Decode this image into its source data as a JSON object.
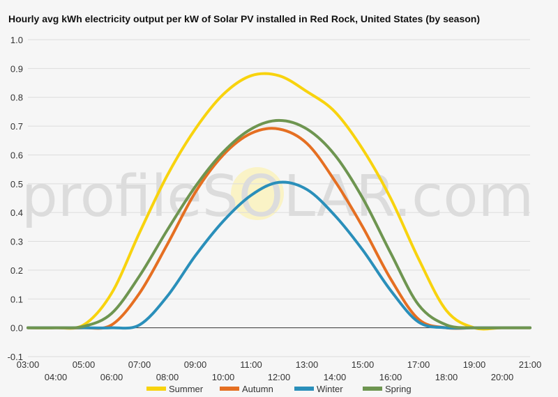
{
  "chart_data": {
    "type": "line",
    "title": "Hourly avg kWh electricity output per kW of Solar PV installed in Red Rock, United States (by season)",
    "xlabel": "",
    "ylabel": "",
    "x_ticks": [
      "03:00",
      "04:00",
      "05:00",
      "06:00",
      "07:00",
      "08:00",
      "09:00",
      "10:00",
      "11:00",
      "12:00",
      "13:00",
      "14:00",
      "15:00",
      "16:00",
      "17:00",
      "18:00",
      "19:00",
      "20:00",
      "21:00"
    ],
    "y_ticks": [
      "-0.1",
      "0.0",
      "0.1",
      "0.2",
      "0.3",
      "0.4",
      "0.5",
      "0.6",
      "0.7",
      "0.8",
      "0.9",
      "1.0"
    ],
    "ylim": [
      -0.1,
      1.0
    ],
    "xlim": [
      3,
      21
    ],
    "grid": true,
    "legend_position": "bottom",
    "watermark": "profileSOLAR.com",
    "series": [
      {
        "name": "Summer",
        "color": "#f8d30e",
        "x": [
          3,
          4,
          5,
          6,
          7,
          8,
          9,
          10,
          11,
          12,
          13,
          14,
          15,
          16,
          17,
          18,
          19,
          20,
          21
        ],
        "values": [
          0,
          0,
          0.01,
          0.12,
          0.33,
          0.53,
          0.69,
          0.81,
          0.875,
          0.875,
          0.82,
          0.75,
          0.62,
          0.45,
          0.24,
          0.06,
          0,
          0,
          0
        ]
      },
      {
        "name": "Autumn",
        "color": "#e56f22",
        "x": [
          3,
          4,
          5,
          6,
          7,
          8,
          9,
          10,
          11,
          12,
          13,
          14,
          15,
          16,
          17,
          18,
          19,
          20,
          21
        ],
        "values": [
          0,
          0,
          0,
          0.01,
          0.12,
          0.29,
          0.47,
          0.6,
          0.675,
          0.69,
          0.64,
          0.51,
          0.35,
          0.17,
          0.03,
          0,
          0,
          0,
          0
        ]
      },
      {
        "name": "Winter",
        "color": "#2a8fba",
        "x": [
          3,
          4,
          5,
          6,
          7,
          8,
          9,
          10,
          11,
          12,
          13,
          14,
          15,
          16,
          17,
          18,
          19,
          20,
          21
        ],
        "values": [
          0,
          0,
          0,
          0,
          0.01,
          0.11,
          0.25,
          0.37,
          0.46,
          0.505,
          0.48,
          0.39,
          0.27,
          0.13,
          0.02,
          0,
          0,
          0,
          0
        ]
      },
      {
        "name": "Spring",
        "color": "#6e9550",
        "x": [
          3,
          4,
          5,
          6,
          7,
          8,
          9,
          10,
          11,
          12,
          13,
          14,
          15,
          16,
          17,
          18,
          19,
          20,
          21
        ],
        "values": [
          0,
          0,
          0.005,
          0.05,
          0.18,
          0.34,
          0.49,
          0.61,
          0.69,
          0.72,
          0.69,
          0.6,
          0.45,
          0.26,
          0.08,
          0.01,
          0,
          0,
          0
        ]
      }
    ]
  }
}
